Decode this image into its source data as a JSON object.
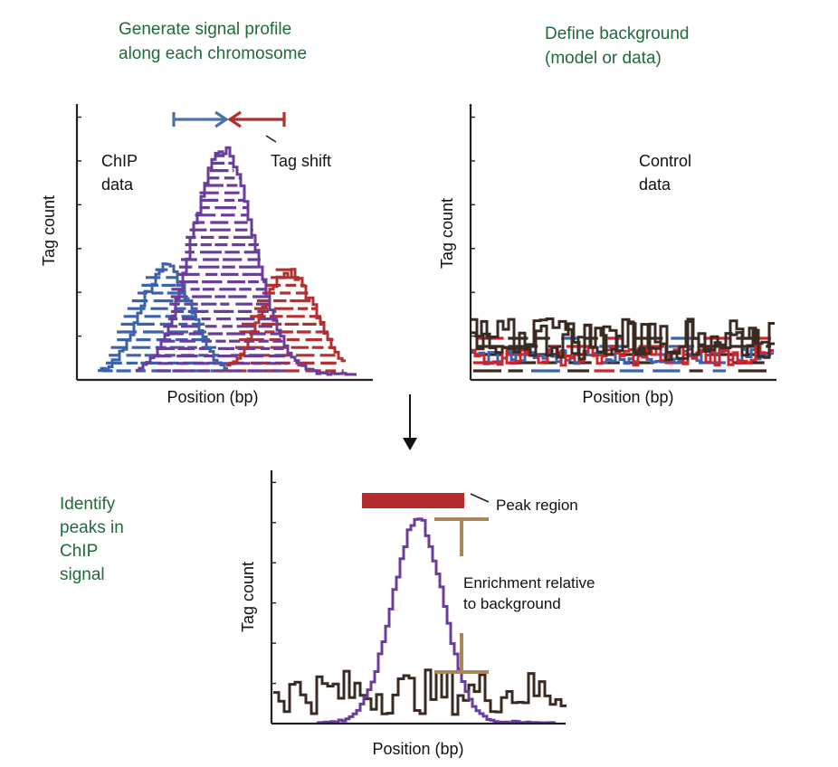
{
  "headings": {
    "generate": [
      "Generate signal profile",
      "along each chromosome"
    ],
    "background": [
      "Define background",
      "(model or data)"
    ],
    "identify": [
      "Identify",
      "peaks in",
      "ChIP",
      "signal"
    ]
  },
  "panel_chip": {
    "y_label": "Tag count",
    "x_label": "Position (bp)",
    "chip_label": [
      "ChIP",
      "data"
    ],
    "tag_shift_label": "Tag shift"
  },
  "panel_control": {
    "y_label": "Tag count",
    "x_label": "Position (bp)",
    "control_label": [
      "Control",
      "data"
    ]
  },
  "panel_peaks": {
    "y_label": "Tag count",
    "x_label": "Position (bp)",
    "peak_region_label": "Peak region",
    "enrichment_label": [
      "Enrichment relative",
      "to background"
    ]
  },
  "colors": {
    "heading_green": "#1f6b3a",
    "blue": "#3b63ad",
    "purple": "#6a3d9a",
    "red": "#b2302f",
    "bright_red": "#d0242a",
    "dark_brown": "#3a2a22",
    "tan": "#a9865a",
    "peak_bar": "#b32b2b",
    "arrow_blue": "#4a74a8"
  }
}
